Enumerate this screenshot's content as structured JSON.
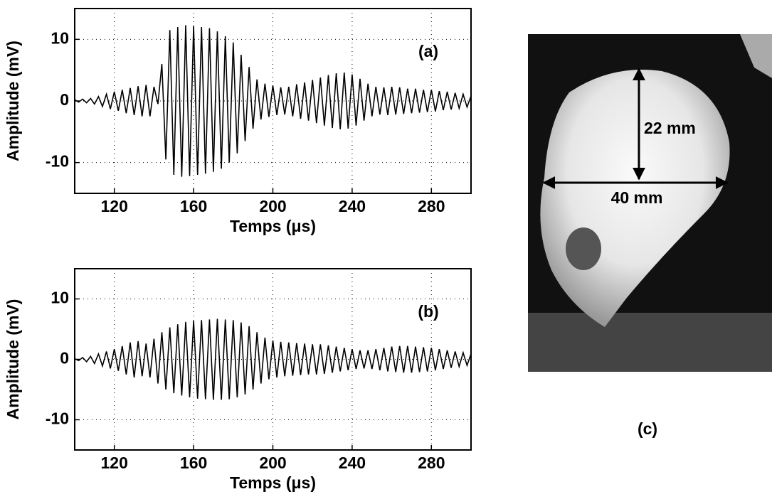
{
  "chart_data": [
    {
      "type": "line",
      "panel_label": "(a)",
      "xlabel": "Temps (μs)",
      "ylabel": "Amplitude (mV)",
      "color": "#000000",
      "grid": true,
      "xlim": [
        100,
        300
      ],
      "ylim": [
        -15,
        15
      ],
      "xticks": [
        120,
        160,
        200,
        240,
        280
      ],
      "yticks": [
        -10,
        0,
        10
      ],
      "x": [
        100,
        102,
        104,
        106,
        108,
        110,
        112,
        114,
        116,
        118,
        120,
        122,
        124,
        126,
        128,
        130,
        132,
        134,
        136,
        138,
        140,
        142,
        144,
        146,
        148,
        150,
        152,
        154,
        156,
        158,
        160,
        162,
        164,
        166,
        168,
        170,
        172,
        174,
        176,
        178,
        180,
        182,
        184,
        186,
        188,
        190,
        192,
        194,
        196,
        198,
        200,
        202,
        204,
        206,
        208,
        210,
        212,
        214,
        216,
        218,
        220,
        222,
        224,
        226,
        228,
        230,
        232,
        234,
        236,
        238,
        240,
        242,
        244,
        246,
        248,
        250,
        252,
        254,
        256,
        258,
        260,
        262,
        264,
        266,
        268,
        270,
        272,
        274,
        276,
        278,
        280,
        282,
        284,
        286,
        288,
        290,
        292,
        294,
        296,
        298,
        300
      ],
      "values": [
        0.2,
        -0.2,
        0.3,
        -0.3,
        0.4,
        -0.5,
        0.7,
        -0.9,
        1.1,
        -1.3,
        1.5,
        -1.6,
        1.8,
        -2,
        2.1,
        -2.3,
        2.4,
        -2.5,
        2.6,
        -2.5,
        2.3,
        -0.5,
        6,
        -9.5,
        11.5,
        -12,
        12,
        -12.3,
        12.3,
        -12.2,
        12.2,
        -12,
        12,
        -11.8,
        11.8,
        -11.5,
        11.3,
        -11,
        10.5,
        -10,
        9.5,
        -8.5,
        7.5,
        -6.5,
        5.5,
        -4.5,
        3.5,
        -3,
        2.8,
        -2.6,
        2.5,
        -2.3,
        2.2,
        -2.2,
        2.3,
        -2.5,
        2.7,
        -2.9,
        3,
        -3.2,
        3.4,
        -3.6,
        3.8,
        -4,
        4.2,
        -4.4,
        4.5,
        -4.6,
        4.6,
        -4.5,
        4.3,
        -4,
        3.6,
        -3.2,
        2.8,
        -2.5,
        2.3,
        -2.2,
        2.2,
        -2.3,
        2.3,
        -2.2,
        2.2,
        -2.1,
        2,
        -2,
        2,
        -1.9,
        1.8,
        -1.8,
        1.8,
        -1.7,
        1.6,
        -1.5,
        1.5,
        -1.4,
        1.3,
        -1.2,
        1.1,
        -1,
        0.8
      ]
    },
    {
      "type": "line",
      "panel_label": "(b)",
      "xlabel": "Temps (μs)",
      "ylabel": "Amplitude (mV)",
      "color": "#000000",
      "grid": true,
      "xlim": [
        100,
        300
      ],
      "ylim": [
        -15,
        15
      ],
      "xticks": [
        120,
        160,
        200,
        240,
        280
      ],
      "yticks": [
        -10,
        0,
        10
      ],
      "x": [
        100,
        102,
        104,
        106,
        108,
        110,
        112,
        114,
        116,
        118,
        120,
        122,
        124,
        126,
        128,
        130,
        132,
        134,
        136,
        138,
        140,
        142,
        144,
        146,
        148,
        150,
        152,
        154,
        156,
        158,
        160,
        162,
        164,
        166,
        168,
        170,
        172,
        174,
        176,
        178,
        180,
        182,
        184,
        186,
        188,
        190,
        192,
        194,
        196,
        198,
        200,
        202,
        204,
        206,
        208,
        210,
        212,
        214,
        216,
        218,
        220,
        222,
        224,
        226,
        228,
        230,
        232,
        234,
        236,
        238,
        240,
        242,
        244,
        246,
        248,
        250,
        252,
        254,
        256,
        258,
        260,
        262,
        264,
        266,
        268,
        270,
        272,
        274,
        276,
        278,
        280,
        282,
        284,
        286,
        288,
        290,
        292,
        294,
        296,
        298,
        300
      ],
      "values": [
        0.1,
        -0.2,
        0.3,
        -0.4,
        0.5,
        -0.7,
        0.9,
        -1.1,
        1.3,
        -1.5,
        1.7,
        -1.9,
        2.2,
        -2.5,
        2.8,
        -3,
        3,
        -2.8,
        2.6,
        -3,
        3.4,
        -4,
        4.5,
        -5,
        5.3,
        -5.6,
        5.8,
        -6,
        6.2,
        -6.3,
        6.4,
        -6.5,
        6.5,
        -6.6,
        6.6,
        -6.7,
        6.7,
        -6.7,
        6.6,
        -6.6,
        6.5,
        -6.3,
        6.1,
        -5.8,
        5.5,
        -5,
        4.5,
        -4,
        3.6,
        -3.3,
        3.1,
        -3,
        2.9,
        -2.8,
        2.8,
        -2.7,
        2.7,
        -2.6,
        2.6,
        -2.5,
        2.5,
        -2.5,
        2.5,
        -2.4,
        2.3,
        -2.2,
        2.1,
        -2,
        1.9,
        -1.8,
        1.7,
        -1.6,
        1.5,
        -1.5,
        1.5,
        -1.6,
        1.7,
        -1.8,
        1.9,
        -2,
        2.1,
        -2.1,
        2.2,
        -2.2,
        2.2,
        -2.2,
        2.1,
        -2.1,
        2,
        -2,
        1.9,
        -1.8,
        1.7,
        -1.6,
        1.5,
        -1.4,
        1.3,
        -1.2,
        1.1,
        -1,
        0.9
      ]
    }
  ],
  "image_panel": {
    "label": "(c)",
    "height_label": "22 mm",
    "width_label": "40 mm"
  }
}
